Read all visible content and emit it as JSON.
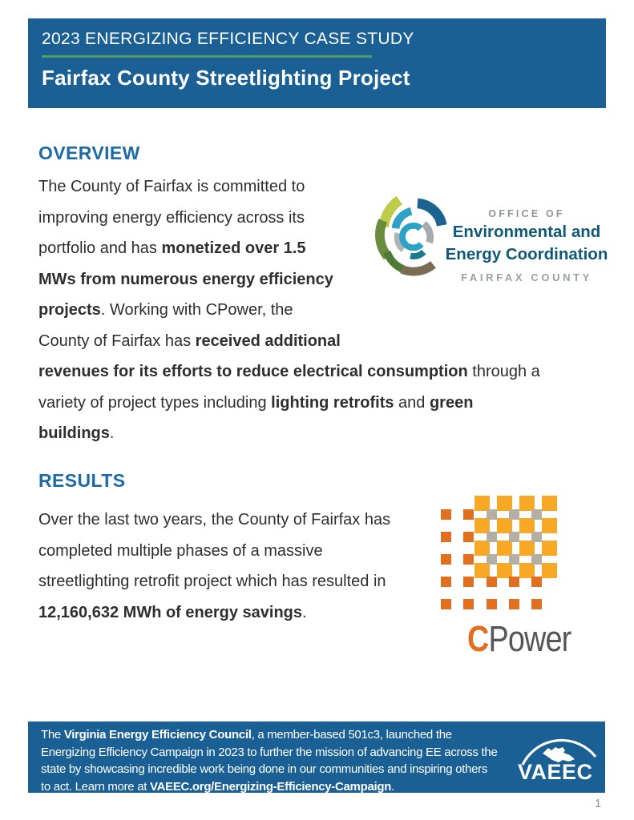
{
  "header": {
    "eyebrow": "2023 ENERGIZING EFFICIENCY CASE STUDY",
    "title": "Fairfax County Streetlighting Project"
  },
  "overview": {
    "heading": "OVERVIEW",
    "paragraph": [
      {
        "t": "The County of Fairfax is committed to\nimproving energy efficiency across its\nportfolio and has ",
        "b": false
      },
      {
        "t": "monetized over 1.5\nMWs from numerous energy efficiency\nprojects",
        "b": true
      },
      {
        "t": ". Working with CPower, the\nCounty of Fairfax has ",
        "b": false
      },
      {
        "t": "received additional\nrevenues for its efforts to reduce electrical consumption",
        "b": true
      },
      {
        "t": " through a\nvariety of project types including ",
        "b": false
      },
      {
        "t": "lighting retrofits",
        "b": true
      },
      {
        "t": " and ",
        "b": false
      },
      {
        "t": "green\nbuildings",
        "b": true
      },
      {
        "t": ".",
        "b": false
      }
    ]
  },
  "results": {
    "heading": "RESULTS",
    "paragraph": [
      {
        "t": "Over the last two years, the County of Fairfax has\ncompleted multiple phases of a massive\nstreetlighting retrofit project which has resulted in\n",
        "b": false
      },
      {
        "t": "12,160,632 MWh of energy savings",
        "b": true
      },
      {
        "t": ".",
        "b": false
      }
    ]
  },
  "oeec_logo": {
    "office_of": "OFFICE OF",
    "line1": "Environmental and",
    "line2": "Energy Coordination",
    "county": "FAIRFAX COUNTY"
  },
  "cpower_logo": {
    "c": "C",
    "rest": "Power"
  },
  "footer": {
    "paragraph": [
      {
        "t": "The ",
        "b": false
      },
      {
        "t": "Virginia Energy Efficiency Council",
        "b": true
      },
      {
        "t": ", a member-based 501c3, launched the\nEnergizing Efficiency Campaign in 2023 to further the mission of advancing EE across the\nstate by showcasing incredible work being done in our communities and inspiring others\nto act. Learn more at ",
        "b": false
      },
      {
        "t": "VAEEC.org/Energizing-Efficiency-Campaign",
        "b": true
      },
      {
        "t": ".",
        "b": false
      }
    ],
    "logo_text": "VAEEC"
  },
  "page": {
    "number": "1"
  },
  "colors": {
    "band_blue": "#1A6094",
    "heading_blue": "#1C6BA6",
    "rule_green": "#4E9B6D",
    "body_text": "#2E2E2E",
    "oeec_blue": "#0F5878",
    "label_gray": "#8F9497",
    "cpower_orange": "#E06F20",
    "cpower_yellow": "#F7A825",
    "cpower_gray": "#B5AFA3",
    "cpower_text": "#55565A",
    "page_number": "#7F9A85"
  }
}
